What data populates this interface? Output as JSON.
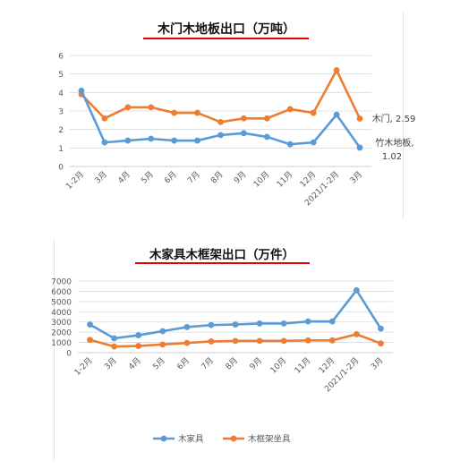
{
  "colors": {
    "blue": "#5b9bd5",
    "orange": "#ed7d31",
    "red_underline": "#e60000",
    "grid": "#d9d9d9"
  },
  "chart_data": [
    {
      "type": "line",
      "title": "木门木地板出口（万吨）",
      "categories": [
        "1-2月",
        "3月",
        "4月",
        "5月",
        "6月",
        "7月",
        "8月",
        "9月",
        "10月",
        "11月",
        "12月",
        "2021/1-2月",
        "3月"
      ],
      "ylim": [
        0,
        6
      ],
      "yticks": [
        0,
        1,
        2,
        3,
        4,
        5,
        6
      ],
      "grid": true,
      "legend": "none",
      "series": [
        {
          "name": "木门",
          "color": "#ed7d31",
          "values": [
            3.9,
            2.6,
            3.2,
            3.2,
            2.9,
            2.9,
            2.4,
            2.6,
            2.6,
            3.1,
            2.9,
            5.2,
            2.59
          ]
        },
        {
          "name": "竹木地板",
          "color": "#5b9bd5",
          "values": [
            4.1,
            1.3,
            1.4,
            1.5,
            1.4,
            1.4,
            1.7,
            1.8,
            1.6,
            1.2,
            1.3,
            2.8,
            1.02
          ]
        }
      ],
      "annotations": [
        {
          "text": "木门, 2.59"
        },
        {
          "text": "竹木地板,"
        },
        {
          "text": "1.02"
        }
      ]
    },
    {
      "type": "line",
      "title": "木家具木框架出口（万件）",
      "categories": [
        "1-2月",
        "3月",
        "4月",
        "5月",
        "6月",
        "7月",
        "8月",
        "9月",
        "10月",
        "11月",
        "12月",
        "2021/1-2月",
        "3月"
      ],
      "ylim": [
        0,
        7000
      ],
      "yticks": [
        0,
        1000,
        2000,
        3000,
        4000,
        5000,
        6000,
        7000
      ],
      "grid": true,
      "legend": "bottom",
      "series": [
        {
          "name": "木家具",
          "color": "#5b9bd5",
          "values": [
            2750,
            1400,
            1700,
            2100,
            2500,
            2700,
            2750,
            2850,
            2850,
            3050,
            3050,
            6100,
            2350
          ]
        },
        {
          "name": "木框架坐具",
          "color": "#ed7d31",
          "values": [
            1250,
            600,
            650,
            800,
            950,
            1100,
            1150,
            1150,
            1150,
            1200,
            1200,
            1800,
            900
          ]
        }
      ]
    }
  ]
}
